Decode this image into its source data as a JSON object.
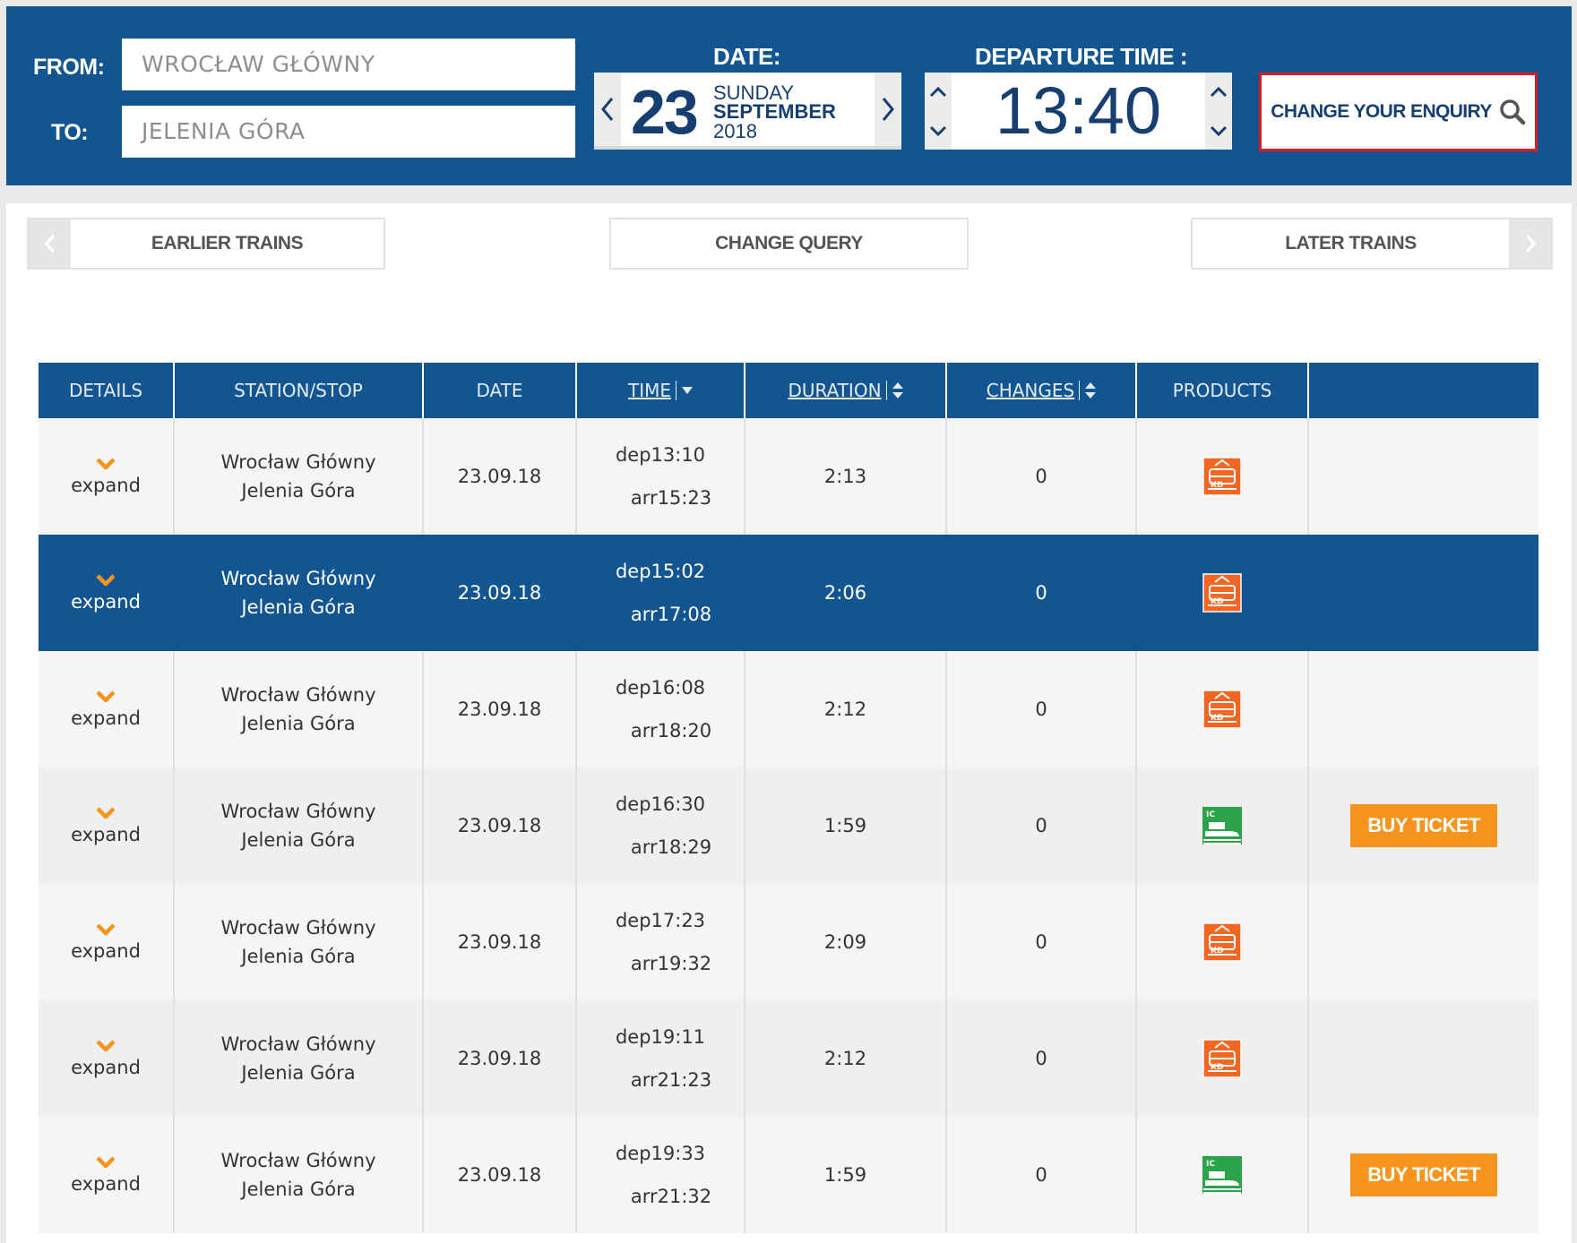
{
  "search": {
    "from_label": "FROM:",
    "to_label": "TO:",
    "from_value": "WROCŁAW GŁÓWNY",
    "to_value": "JELENIA GÓRA",
    "date_label": "DATE:",
    "date_day": "23",
    "date_weekday": "SUNDAY",
    "date_month": "SEPTEMBER",
    "date_year": "2018",
    "departure_label": "DEPARTURE TIME :",
    "departure_time": "13:40",
    "change_label": "CHANGE YOUR ENQUIRY"
  },
  "nav": {
    "earlier": "EARLIER TRAINS",
    "change": "CHANGE QUERY",
    "later": "LATER TRAINS"
  },
  "table": {
    "headers": [
      "DETAILS",
      "STATION/STOP",
      "DATE",
      "TIME",
      "DURATION",
      "CHANGES",
      "PRODUCTS",
      ""
    ],
    "rows": [
      {
        "expand": "expand",
        "from": "Wrocław Główny",
        "to": "Jelenia Góra",
        "date": "23.09.18",
        "dep": "dep13:10",
        "arr": "arr15:23",
        "duration": "2:13",
        "changes": "0",
        "product": "kd-train-icon",
        "buy": ""
      },
      {
        "expand": "expand",
        "from": "Wrocław Główny",
        "to": "Jelenia Góra",
        "date": "23.09.18",
        "dep": "dep15:02",
        "arr": "arr17:08",
        "duration": "2:06",
        "changes": "0",
        "product": "kd-train-icon",
        "buy": "",
        "selected": true
      },
      {
        "expand": "expand",
        "from": "Wrocław Główny",
        "to": "Jelenia Góra",
        "date": "23.09.18",
        "dep": "dep16:08",
        "arr": "arr18:20",
        "duration": "2:12",
        "changes": "0",
        "product": "kd-train-icon",
        "buy": ""
      },
      {
        "expand": "expand",
        "from": "Wrocław Główny",
        "to": "Jelenia Góra",
        "date": "23.09.18",
        "dep": "dep16:30",
        "arr": "arr18:29",
        "duration": "1:59",
        "changes": "0",
        "product": "ic-train-icon",
        "buy": "BUY TICKET"
      },
      {
        "expand": "expand",
        "from": "Wrocław Główny",
        "to": "Jelenia Góra",
        "date": "23.09.18",
        "dep": "dep17:23",
        "arr": "arr19:32",
        "duration": "2:09",
        "changes": "0",
        "product": "kd-train-icon",
        "buy": ""
      },
      {
        "expand": "expand",
        "from": "Wrocław Główny",
        "to": "Jelenia Góra",
        "date": "23.09.18",
        "dep": "dep19:11",
        "arr": "arr21:23",
        "duration": "2:12",
        "changes": "0",
        "product": "kd-train-icon",
        "buy": ""
      },
      {
        "expand": "expand",
        "from": "Wrocław Główny",
        "to": "Jelenia Góra",
        "date": "23.09.18",
        "dep": "dep19:33",
        "arr": "arr21:32",
        "duration": "1:59",
        "changes": "0",
        "product": "ic-train-icon",
        "buy": "BUY TICKET"
      }
    ]
  },
  "colors": {
    "brand_blue": "#135591",
    "accent_orange": "#f7941d",
    "kd_orange": "#f26522",
    "ic_green": "#2aa34a",
    "alert_red": "#d91c21"
  }
}
